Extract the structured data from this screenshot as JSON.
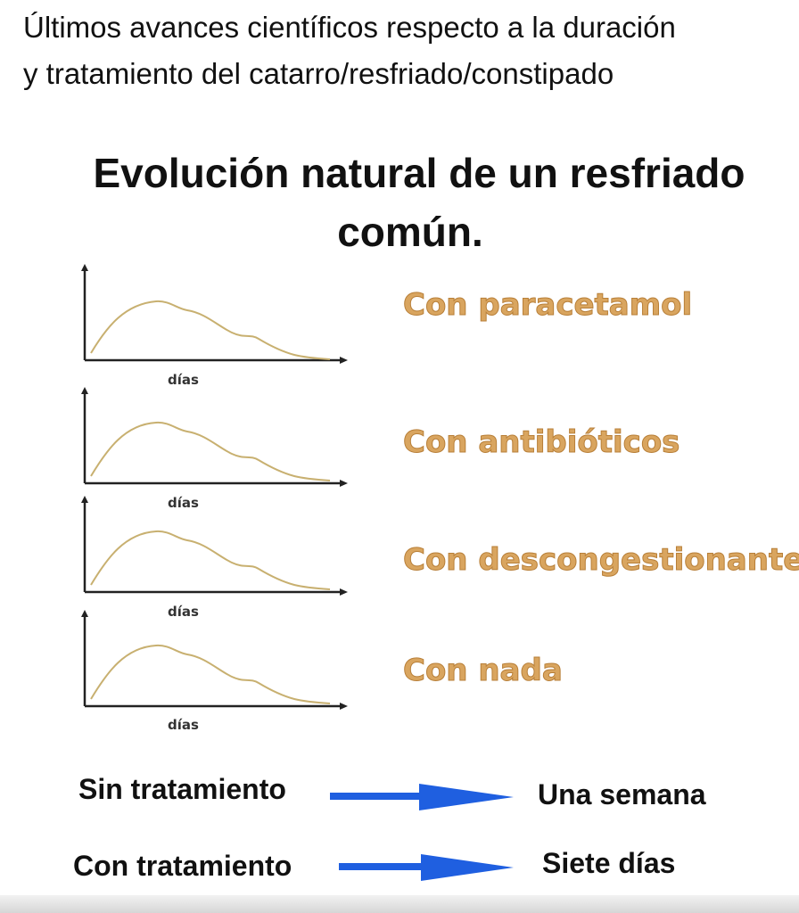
{
  "header": {
    "line1": "Últimos avances científicos respecto a la duración",
    "line2": "y tratamiento del catarro/resfriado/constipado"
  },
  "title": {
    "line1": "Evolución natural de un resfriado",
    "line2": "común."
  },
  "rows": [
    {
      "axis_label": "días",
      "treatment": "Con paracetamol"
    },
    {
      "axis_label": "días",
      "treatment": "Con antibióticos"
    },
    {
      "axis_label": "días",
      "treatment": "Con descongestionantes"
    },
    {
      "axis_label": "días",
      "treatment": "Con nada"
    }
  ],
  "summary": {
    "row1": {
      "left": "Sin tratamiento",
      "right": "Una semana"
    },
    "row2": {
      "left": "Con tratamiento",
      "right": "Siete días"
    }
  },
  "colors": {
    "curve": "#c8b070",
    "treatment_text": "#d9a55f",
    "arrow": "#1f5fe0"
  }
}
